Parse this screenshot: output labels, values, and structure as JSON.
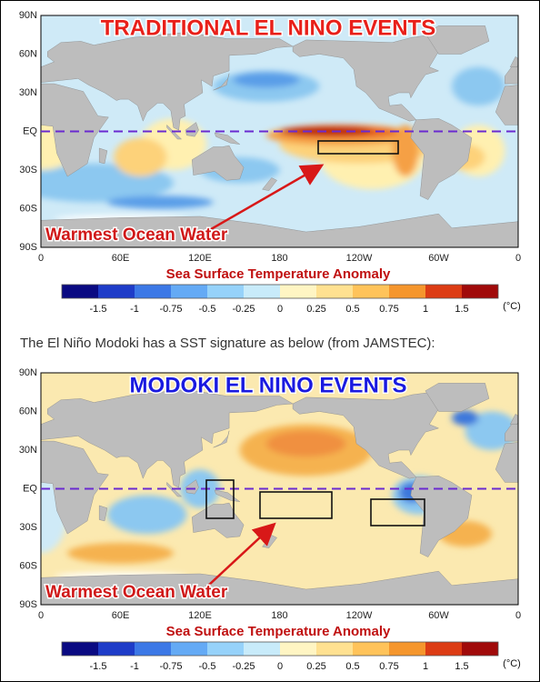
{
  "panels": [
    {
      "title": "TRADITIONAL EL NINO EVENTS",
      "lat_labels": [
        "90N",
        "60N",
        "30N",
        "EQ",
        "30S",
        "60S",
        "90S"
      ],
      "lon_labels": [
        "0",
        "60E",
        "120E",
        "180",
        "120W",
        "60W",
        "0"
      ],
      "annotation": "Warmest Ocean Water",
      "colorbar": {
        "title": "Sea Surface Temperature Anomaly",
        "labels": [
          "-1.5",
          "-1",
          "-0.75",
          "-0.5",
          "-0.25",
          "0",
          "0.25",
          "0.5",
          "0.75",
          "1",
          "1.5"
        ],
        "unit": "(°C)"
      }
    },
    {
      "title": "MODOKI EL NINO EVENTS",
      "lat_labels": [
        "90N",
        "60N",
        "30N",
        "EQ",
        "30S",
        "60S",
        "90S"
      ],
      "lon_labels": [
        "0",
        "60E",
        "120E",
        "180",
        "120W",
        "60W",
        "0"
      ],
      "annotation": "Warmest Ocean Water",
      "colorbar": {
        "title": "Sea Surface Temperature Anomaly",
        "labels": [
          "-1.5",
          "-1",
          "-0.75",
          "-0.5",
          "-0.25",
          "0",
          "0.25",
          "0.5",
          "0.75",
          "1",
          "1.5"
        ],
        "unit": "(°C)"
      }
    }
  ],
  "caption": "The El Niño Modoki has a SST signature as below (from JAMSTEC):"
}
